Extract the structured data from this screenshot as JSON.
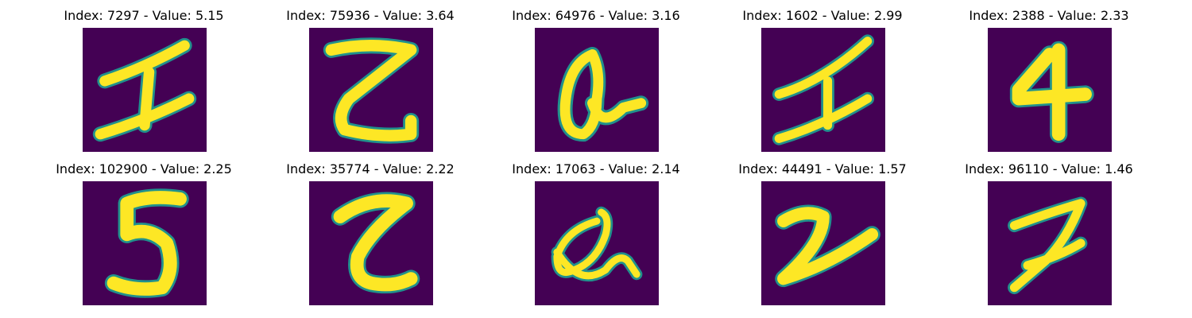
{
  "figure": {
    "background_color": "#440154",
    "stroke_color": "#fde725",
    "edge_color": "#21918c",
    "panels": [
      {
        "index": "7297",
        "value": "5.15",
        "title": "Index: 7297 - Value: 5.15",
        "glyph": "1"
      },
      {
        "index": "75936",
        "value": "3.64",
        "title": "Index: 75936 - Value: 3.64",
        "glyph": "Z"
      },
      {
        "index": "64976",
        "value": "3.16",
        "title": "Index: 64976 - Value: 3.16",
        "glyph": "a"
      },
      {
        "index": "1602",
        "value": "2.99",
        "title": "Index: 1602 - Value: 2.99",
        "glyph": "1"
      },
      {
        "index": "2388",
        "value": "2.33",
        "title": "Index: 2388 - Value: 2.33",
        "glyph": "4"
      },
      {
        "index": "102900",
        "value": "2.25",
        "title": "Index: 102900 - Value: 2.25",
        "glyph": "5"
      },
      {
        "index": "35774",
        "value": "2.22",
        "title": "Index: 35774 - Value: 2.22",
        "glyph": "Z"
      },
      {
        "index": "17063",
        "value": "2.14",
        "title": "Index: 17063 - Value: 2.14",
        "glyph": "a"
      },
      {
        "index": "44491",
        "value": "1.57",
        "title": "Index: 44491 - Value: 1.57",
        "glyph": "2"
      },
      {
        "index": "96110",
        "value": "1.46",
        "title": "Index: 96110 - Value: 1.46",
        "glyph": "7"
      }
    ]
  }
}
